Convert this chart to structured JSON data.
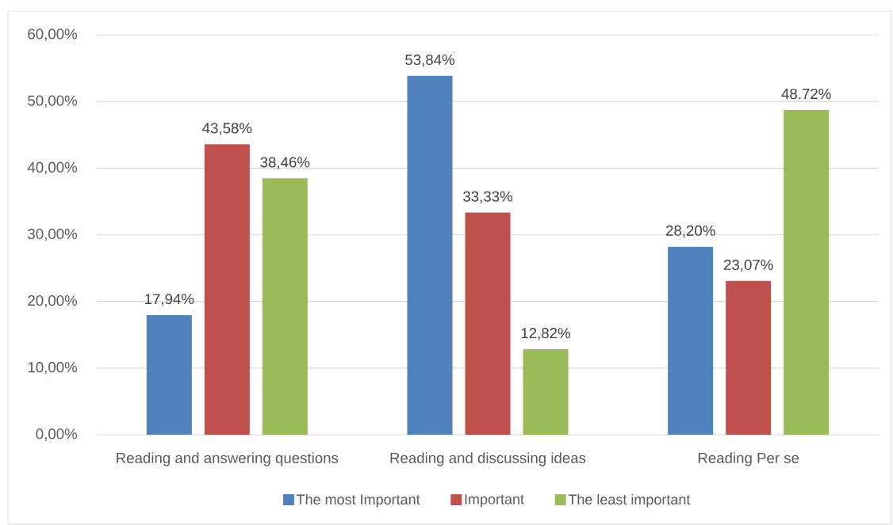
{
  "chart_data": {
    "type": "bar",
    "categories": [
      "Reading and answering questions",
      "Reading and discussing ideas",
      "Reading Per se"
    ],
    "series": [
      {
        "name": "The most Important",
        "color": "#4f81bd",
        "values": [
          17.94,
          53.84,
          28.2
        ],
        "value_labels": [
          "17,94%",
          "53,84%",
          "28,20%"
        ]
      },
      {
        "name": "Important",
        "color": "#c0504d",
        "values": [
          43.58,
          33.33,
          23.07
        ],
        "value_labels": [
          "43,58%",
          "33,33%",
          "23,07%"
        ]
      },
      {
        "name": "The least important",
        "color": "#9bbb59",
        "values": [
          38.46,
          12.82,
          48.72
        ],
        "value_labels": [
          "38,46%",
          "12,82%",
          "48.72%"
        ]
      }
    ],
    "ylim": [
      0,
      60
    ],
    "yticks": [
      {
        "value": 0,
        "label": "0,00%"
      },
      {
        "value": 10,
        "label": "10,00%"
      },
      {
        "value": 20,
        "label": "20,00%"
      },
      {
        "value": 30,
        "label": "30,00%"
      },
      {
        "value": 40,
        "label": "40,00%"
      },
      {
        "value": 50,
        "label": "50,00%"
      },
      {
        "value": 60,
        "label": "60,00%"
      }
    ],
    "grid": "y",
    "legend": "bottom"
  }
}
